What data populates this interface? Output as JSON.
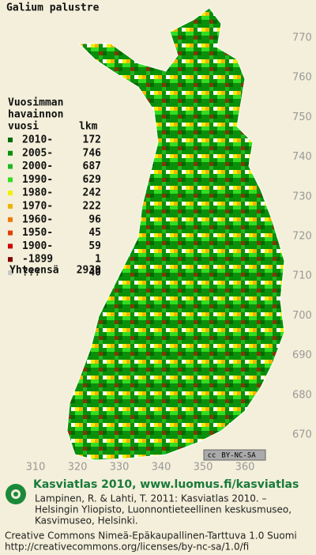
{
  "title": "Galium palustre",
  "legend": {
    "heading": [
      "Vuosimman",
      "havainnon",
      "vuosi"
    ],
    "count_heading": "lkm",
    "rows": [
      {
        "label": "2010-",
        "count": 172,
        "color": "#006a00"
      },
      {
        "label": "2005-",
        "count": 746,
        "color": "#0a8f0a"
      },
      {
        "label": "2000-",
        "count": 687,
        "color": "#1fb81f"
      },
      {
        "label": "1990-",
        "count": 629,
        "color": "#33dd22"
      },
      {
        "label": "1980-",
        "count": 242,
        "color": "#f0f000"
      },
      {
        "label": "1970-",
        "count": 222,
        "color": "#f0b400"
      },
      {
        "label": "1960-",
        "count": 96,
        "color": "#f07800"
      },
      {
        "label": "1950-",
        "count": 45,
        "color": "#e04000"
      },
      {
        "label": "1900-",
        "count": 59,
        "color": "#d00000"
      },
      {
        "label": "-1899",
        "count": 1,
        "color": "#800000"
      },
      {
        "label": "???",
        "count": 40,
        "color": "#c8c8c8"
      }
    ],
    "total_label": "Yhteensä",
    "total": 2939
  },
  "y_labels": [
    770,
    760,
    750,
    740,
    730,
    720,
    710,
    700,
    690,
    680,
    670
  ],
  "x_labels": [
    310,
    320,
    330,
    340,
    350,
    360
  ],
  "license_badge": [
    "cc",
    "BY-NC-SA"
  ],
  "footer": {
    "site": "Kasviatlas 2010, www.luomus.fi/kasviatlas",
    "citation": [
      "Lampinen, R. & Lahti, T. 2011: Kasviatlas 2010. –",
      "Helsingin Yliopisto, Luonnontieteellinen keskusmuseo,",
      "Kasvimuseo, Helsinki."
    ],
    "license": [
      "Creative Commons Nimeä-Epäkaupallinen-Tarttuva 1.0 Suomi",
      "http://creativecommons.org/licenses/by-nc-sa/1.0/fi"
    ]
  }
}
